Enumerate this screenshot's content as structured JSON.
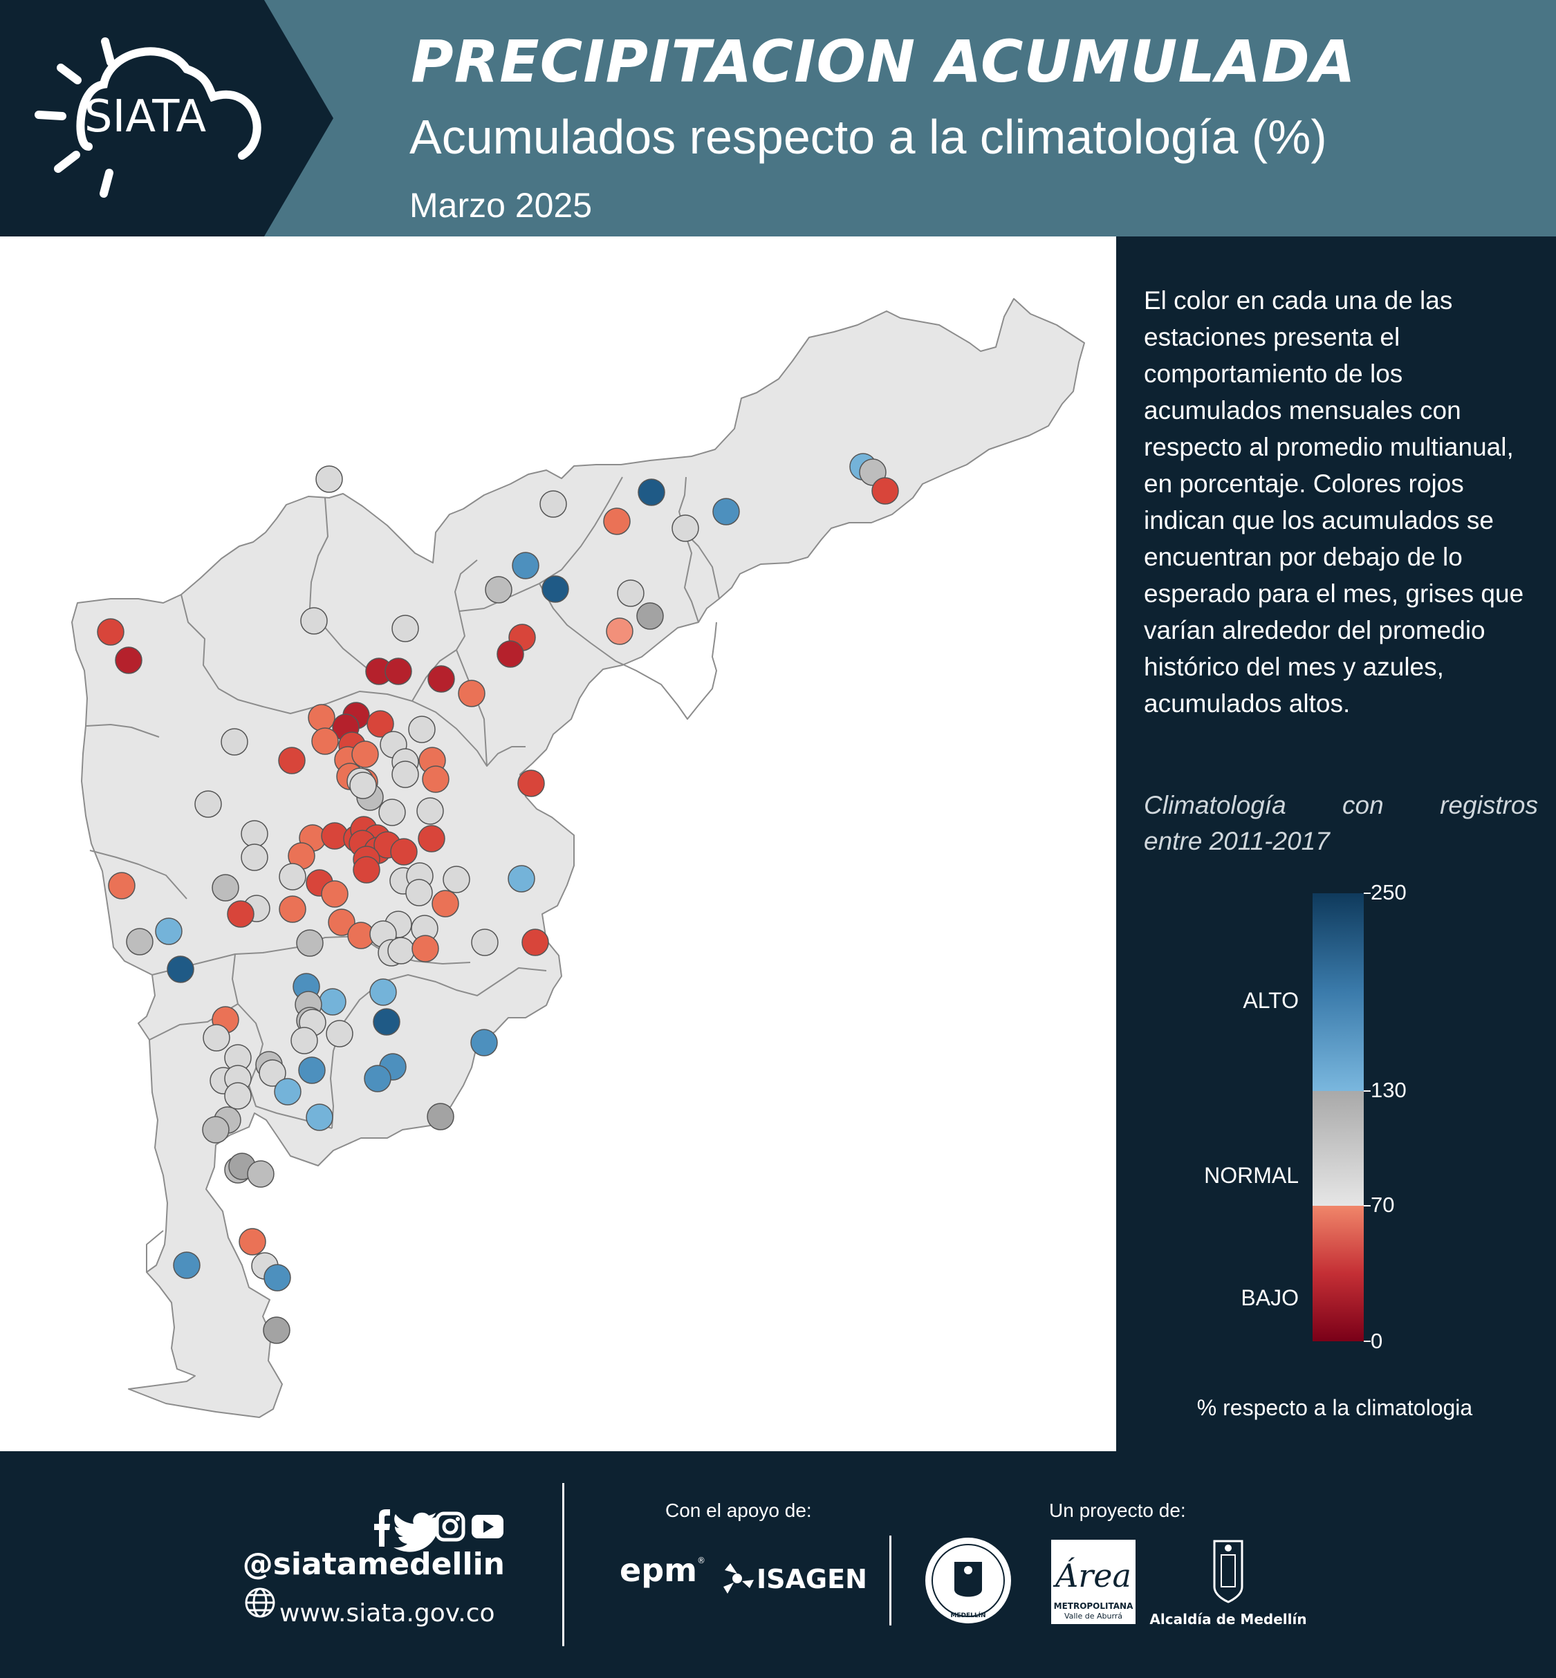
{
  "header": {
    "logo_text": "SIATA",
    "title": "PRECIPITACION ACUMULADA",
    "subtitle": "Acumulados respecto a la climatología (%)",
    "period": "Marzo 2025"
  },
  "panel": {
    "description": "El color en cada una de las estaciones presenta el comportamiento de los acumulados mensuales con respecto al promedio multianual, en porcentaje. Colores rojos indican que los acumulados se encuentran por debajo de lo esperado para el mes, grises que varían alrededor del promedio histórico del mes y azules, acumulados altos.",
    "climatology_line1": "Climatología con registros",
    "climatology_line2": "entre 2011-2017",
    "colorbar": {
      "ticks": [
        "250",
        "130",
        "70",
        "0"
      ],
      "tick_values": [
        250,
        130,
        70,
        0
      ],
      "categories": [
        "ALTO",
        "NORMAL",
        "BAJO"
      ],
      "title": "% respecto a la climatologia",
      "colors": {
        "high_dark": "#0f3a5c",
        "high_light": "#7ab7de",
        "normal_dark": "#a9a9a9",
        "normal_light": "#e6e6e6",
        "low_light": "#f0866a",
        "low_dark": "#7a0018"
      }
    }
  },
  "map": {
    "background": "#ffffff",
    "region_fill": "#e6e6e6",
    "border_color": "#8c8c8c",
    "category_colors": {
      "red_dark": "#b5212c",
      "red": "#d8453a",
      "salmon": "#ea7256",
      "light_salmon": "#f2907a",
      "gray_light": "#d9d9d9",
      "gray": "#bdbdbd",
      "gray_dark": "#a3a3a3",
      "blue_light": "#74b3d9",
      "blue": "#4d90be",
      "blue_dark": "#1f5a86"
    },
    "stations": [
      {
        "c": "blue_light",
        "v": [
          1248,
          675
        ]
      },
      {
        "c": "gray",
        "v": [
          1262,
          683
        ]
      },
      {
        "c": "red",
        "v": [
          1280,
          710
        ]
      },
      {
        "c": "blue_dark",
        "v": [
          942,
          712
        ]
      },
      {
        "c": "blue",
        "v": [
          1050,
          740
        ]
      },
      {
        "c": "gray_light",
        "v": [
          991,
          764
        ]
      },
      {
        "c": "salmon",
        "v": [
          892,
          754
        ]
      },
      {
        "c": "gray_light",
        "v": [
          800,
          729
        ]
      },
      {
        "c": "gray_light",
        "v": [
          476,
          693
        ]
      },
      {
        "c": "blue",
        "v": [
          760,
          818
        ]
      },
      {
        "c": "blue_dark",
        "v": [
          803,
          852
        ]
      },
      {
        "c": "gray",
        "v": [
          721,
          853
        ]
      },
      {
        "c": "gray_light",
        "v": [
          912,
          858
        ]
      },
      {
        "c": "gray_dark",
        "v": [
          940,
          891
        ]
      },
      {
        "c": "light_salmon",
        "v": [
          896,
          913
        ]
      },
      {
        "c": "red",
        "v": [
          160,
          914
        ]
      },
      {
        "c": "red_dark",
        "v": [
          186,
          955
        ]
      },
      {
        "c": "gray_light",
        "v": [
          454,
          898
        ]
      },
      {
        "c": "gray_light",
        "v": [
          586,
          909
        ]
      },
      {
        "c": "red",
        "v": [
          755,
          922
        ]
      },
      {
        "c": "red_dark",
        "v": [
          738,
          946
        ]
      },
      {
        "c": "red_dark",
        "v": [
          548,
          971
        ]
      },
      {
        "c": "red_dark",
        "v": [
          576,
          971
        ]
      },
      {
        "c": "red_dark",
        "v": [
          638,
          982
        ]
      },
      {
        "c": "salmon",
        "v": [
          682,
          1003
        ]
      },
      {
        "c": "salmon",
        "v": [
          465,
          1038
        ]
      },
      {
        "c": "red_dark",
        "v": [
          515,
          1035
        ]
      },
      {
        "c": "red_dark",
        "v": [
          500,
          1052
        ]
      },
      {
        "c": "red",
        "v": [
          550,
          1047
        ]
      },
      {
        "c": "salmon",
        "v": [
          470,
          1072
        ]
      },
      {
        "c": "red",
        "v": [
          509,
          1078
        ]
      },
      {
        "c": "gray_light",
        "v": [
          569,
          1077
        ]
      },
      {
        "c": "gray_light",
        "v": [
          610,
          1055
        ]
      },
      {
        "c": "salmon",
        "v": [
          503,
          1099
        ]
      },
      {
        "c": "salmon",
        "v": [
          528,
          1091
        ]
      },
      {
        "c": "gray_light",
        "v": [
          586,
          1102
        ]
      },
      {
        "c": "salmon",
        "v": [
          625,
          1100
        ]
      },
      {
        "c": "salmon",
        "v": [
          630,
          1127
        ]
      },
      {
        "c": "red",
        "v": [
          422,
          1100
        ]
      },
      {
        "c": "gray_light",
        "v": [
          339,
          1073
        ]
      },
      {
        "c": "salmon",
        "v": [
          506,
          1123
        ]
      },
      {
        "c": "salmon",
        "v": [
          527,
          1131
        ]
      },
      {
        "c": "gray_light",
        "v": [
          586,
          1120
        ]
      },
      {
        "c": "gray_light",
        "v": [
          521,
          1130
        ]
      },
      {
        "c": "red",
        "v": [
          768,
          1133
        ]
      },
      {
        "c": "gray_light",
        "v": [
          301,
          1163
        ]
      },
      {
        "c": "gray",
        "v": [
          535,
          1153
        ]
      },
      {
        "c": "gray_light",
        "v": [
          525,
          1136
        ]
      },
      {
        "c": "gray_light",
        "v": [
          567,
          1175
        ]
      },
      {
        "c": "gray_light",
        "v": [
          622,
          1173
        ]
      },
      {
        "c": "gray_light",
        "v": [
          368,
          1206
        ]
      },
      {
        "c": "gray_light",
        "v": [
          368,
          1240
        ]
      },
      {
        "c": "salmon",
        "v": [
          452,
          1212
        ]
      },
      {
        "c": "red",
        "v": [
          484,
          1209
        ]
      },
      {
        "c": "red",
        "v": [
          516,
          1213
        ]
      },
      {
        "c": "red",
        "v": [
          526,
          1200
        ]
      },
      {
        "c": "red",
        "v": [
          545,
          1212
        ]
      },
      {
        "c": "red",
        "v": [
          524,
          1220
        ]
      },
      {
        "c": "red",
        "v": [
          546,
          1230
        ]
      },
      {
        "c": "red",
        "v": [
          560,
          1222
        ]
      },
      {
        "c": "red",
        "v": [
          584,
          1232
        ]
      },
      {
        "c": "red",
        "v": [
          624,
          1213
        ]
      },
      {
        "c": "salmon",
        "v": [
          436,
          1238
        ]
      },
      {
        "c": "red",
        "v": [
          530,
          1243
        ]
      },
      {
        "c": "red",
        "v": [
          530,
          1258
        ]
      },
      {
        "c": "gray_light",
        "v": [
          423,
          1268
        ]
      },
      {
        "c": "gray_light",
        "v": [
          583,
          1274
        ]
      },
      {
        "c": "gray_light",
        "v": [
          607,
          1267
        ]
      },
      {
        "c": "gray_light",
        "v": [
          660,
          1272
        ]
      },
      {
        "c": "gray_light",
        "v": [
          606,
          1291
        ]
      },
      {
        "c": "salmon",
        "v": [
          176,
          1281
        ]
      },
      {
        "c": "gray",
        "v": [
          326,
          1284
        ]
      },
      {
        "c": "red",
        "v": [
          462,
          1277
        ]
      },
      {
        "c": "salmon",
        "v": [
          484,
          1293
        ]
      },
      {
        "c": "blue_light",
        "v": [
          754,
          1271
        ]
      },
      {
        "c": "gray_light",
        "v": [
          371,
          1314
        ]
      },
      {
        "c": "red",
        "v": [
          348,
          1322
        ]
      },
      {
        "c": "salmon",
        "v": [
          423,
          1315
        ]
      },
      {
        "c": "salmon",
        "v": [
          644,
          1307
        ]
      },
      {
        "c": "salmon",
        "v": [
          494,
          1334
        ]
      },
      {
        "c": "gray_light",
        "v": [
          576,
          1337
        ]
      },
      {
        "c": "salmon",
        "v": [
          522,
          1353
        ]
      },
      {
        "c": "gray_light",
        "v": [
          614,
          1343
        ]
      },
      {
        "c": "gray_light",
        "v": [
          554,
          1351
        ]
      },
      {
        "c": "gray_light",
        "v": [
          566,
          1378
        ]
      },
      {
        "c": "gray_light",
        "v": [
          580,
          1375
        ]
      },
      {
        "c": "salmon",
        "v": [
          615,
          1372
        ]
      },
      {
        "c": "gray_light",
        "v": [
          701,
          1363
        ]
      },
      {
        "c": "red",
        "v": [
          774,
          1363
        ]
      },
      {
        "c": "gray",
        "v": [
          448,
          1364
        ]
      },
      {
        "c": "blue_light",
        "v": [
          244,
          1347
        ]
      },
      {
        "c": "gray",
        "v": [
          202,
          1362
        ]
      },
      {
        "c": "blue_dark",
        "v": [
          261,
          1402
        ]
      },
      {
        "c": "blue",
        "v": [
          443,
          1427
        ]
      },
      {
        "c": "blue_light",
        "v": [
          481,
          1449
        ]
      },
      {
        "c": "blue_light",
        "v": [
          554,
          1435
        ]
      },
      {
        "c": "gray",
        "v": [
          446,
          1453
        ]
      },
      {
        "c": "gray",
        "v": [
          448,
          1476
        ]
      },
      {
        "c": "gray_light",
        "v": [
          452,
          1479
        ]
      },
      {
        "c": "blue_dark",
        "v": [
          559,
          1478
        ]
      },
      {
        "c": "salmon",
        "v": [
          326,
          1475
        ]
      },
      {
        "c": "gray_light",
        "v": [
          313,
          1501
        ]
      },
      {
        "c": "gray_light",
        "v": [
          440,
          1505
        ]
      },
      {
        "c": "gray_light",
        "v": [
          491,
          1495
        ]
      },
      {
        "c": "blue",
        "v": [
          700,
          1508
        ]
      },
      {
        "c": "gray_light",
        "v": [
          344,
          1530
        ]
      },
      {
        "c": "gray",
        "v": [
          389,
          1540
        ]
      },
      {
        "c": "gray_light",
        "v": [
          394,
          1552
        ]
      },
      {
        "c": "blue",
        "v": [
          451,
          1548
        ]
      },
      {
        "c": "blue",
        "v": [
          568,
          1543
        ]
      },
      {
        "c": "blue",
        "v": [
          546,
          1560
        ]
      },
      {
        "c": "gray_light",
        "v": [
          323,
          1563
        ]
      },
      {
        "c": "gray_light",
        "v": [
          344,
          1560
        ]
      },
      {
        "c": "gray_light",
        "v": [
          344,
          1585
        ]
      },
      {
        "c": "blue_light",
        "v": [
          416,
          1579
        ]
      },
      {
        "c": "gray",
        "v": [
          329,
          1620
        ]
      },
      {
        "c": "blue_light",
        "v": [
          462,
          1616
        ]
      },
      {
        "c": "gray",
        "v": [
          312,
          1634
        ]
      },
      {
        "c": "gray_dark",
        "v": [
          637,
          1615
        ]
      },
      {
        "c": "gray",
        "v": [
          344,
          1692
        ]
      },
      {
        "c": "gray_dark",
        "v": [
          350,
          1687
        ]
      },
      {
        "c": "gray",
        "v": [
          377,
          1698
        ]
      },
      {
        "c": "salmon",
        "v": [
          365,
          1796
        ]
      },
      {
        "c": "blue",
        "v": [
          270,
          1830
        ]
      },
      {
        "c": "gray_light",
        "v": [
          383,
          1831
        ]
      },
      {
        "c": "blue",
        "v": [
          401,
          1848
        ]
      },
      {
        "c": "gray_dark",
        "v": [
          400,
          1924
        ]
      }
    ]
  },
  "footer": {
    "handle": "@siatamedellin",
    "website": "www.siata.gov.co",
    "support_label": "Con el apoyo de:",
    "project_label": "Un proyecto de:",
    "sponsors": [
      "epm",
      "ISAGEN"
    ],
    "partners": [
      "MEDELLÍN",
      "Área",
      "METROPOLITANA",
      "Valle de Aburrá",
      "Alcaldía de Medellín"
    ]
  }
}
